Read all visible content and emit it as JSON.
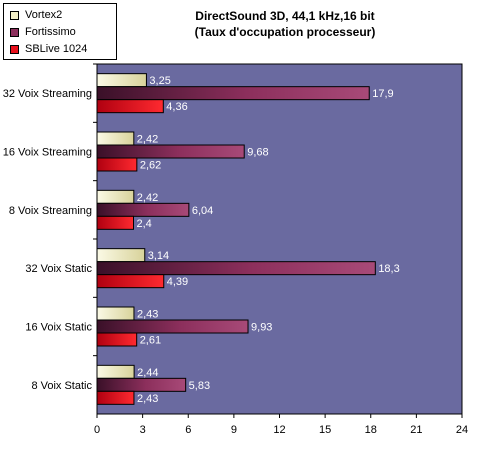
{
  "chart_data": {
    "type": "bar",
    "orientation": "horizontal",
    "title": "DirectSound 3D, 44,1 kHz,16 bit",
    "subtitle": "(Taux d'occupation processeur)",
    "categories": [
      "32 Voix Streaming",
      "16 Voix Streaming",
      "8 Voix Streaming",
      "32 Voix Static",
      "16 Voix Static",
      "8 Voix Static"
    ],
    "series": [
      {
        "name": "Vortex2",
        "values": [
          3.25,
          2.42,
          2.42,
          3.14,
          2.43,
          2.44
        ],
        "labels": [
          "3,25",
          "2,42",
          "2,42",
          "3,14",
          "2,43",
          "2,44"
        ],
        "color": "#f4f0c8"
      },
      {
        "name": "Fortissimo",
        "values": [
          17.9,
          9.68,
          6.04,
          18.3,
          9.93,
          5.83
        ],
        "labels": [
          "17,9",
          "9,68",
          "6,04",
          "18,3",
          "9,93",
          "5,83"
        ],
        "color": "#8c2f5c"
      },
      {
        "name": "SBLive 1024",
        "values": [
          4.36,
          2.62,
          2.4,
          4.39,
          2.61,
          2.43
        ],
        "labels": [
          "4,36",
          "2,62",
          "2,4",
          "4,39",
          "2,61",
          "2,43"
        ],
        "color": "#e8101c"
      }
    ],
    "xlim": [
      0,
      24
    ],
    "xticks": [
      "0",
      "3",
      "6",
      "9",
      "12",
      "15",
      "18",
      "21",
      "24"
    ],
    "grid": false,
    "legend_position": "top-left",
    "plot_background": "#6a6aa0"
  }
}
